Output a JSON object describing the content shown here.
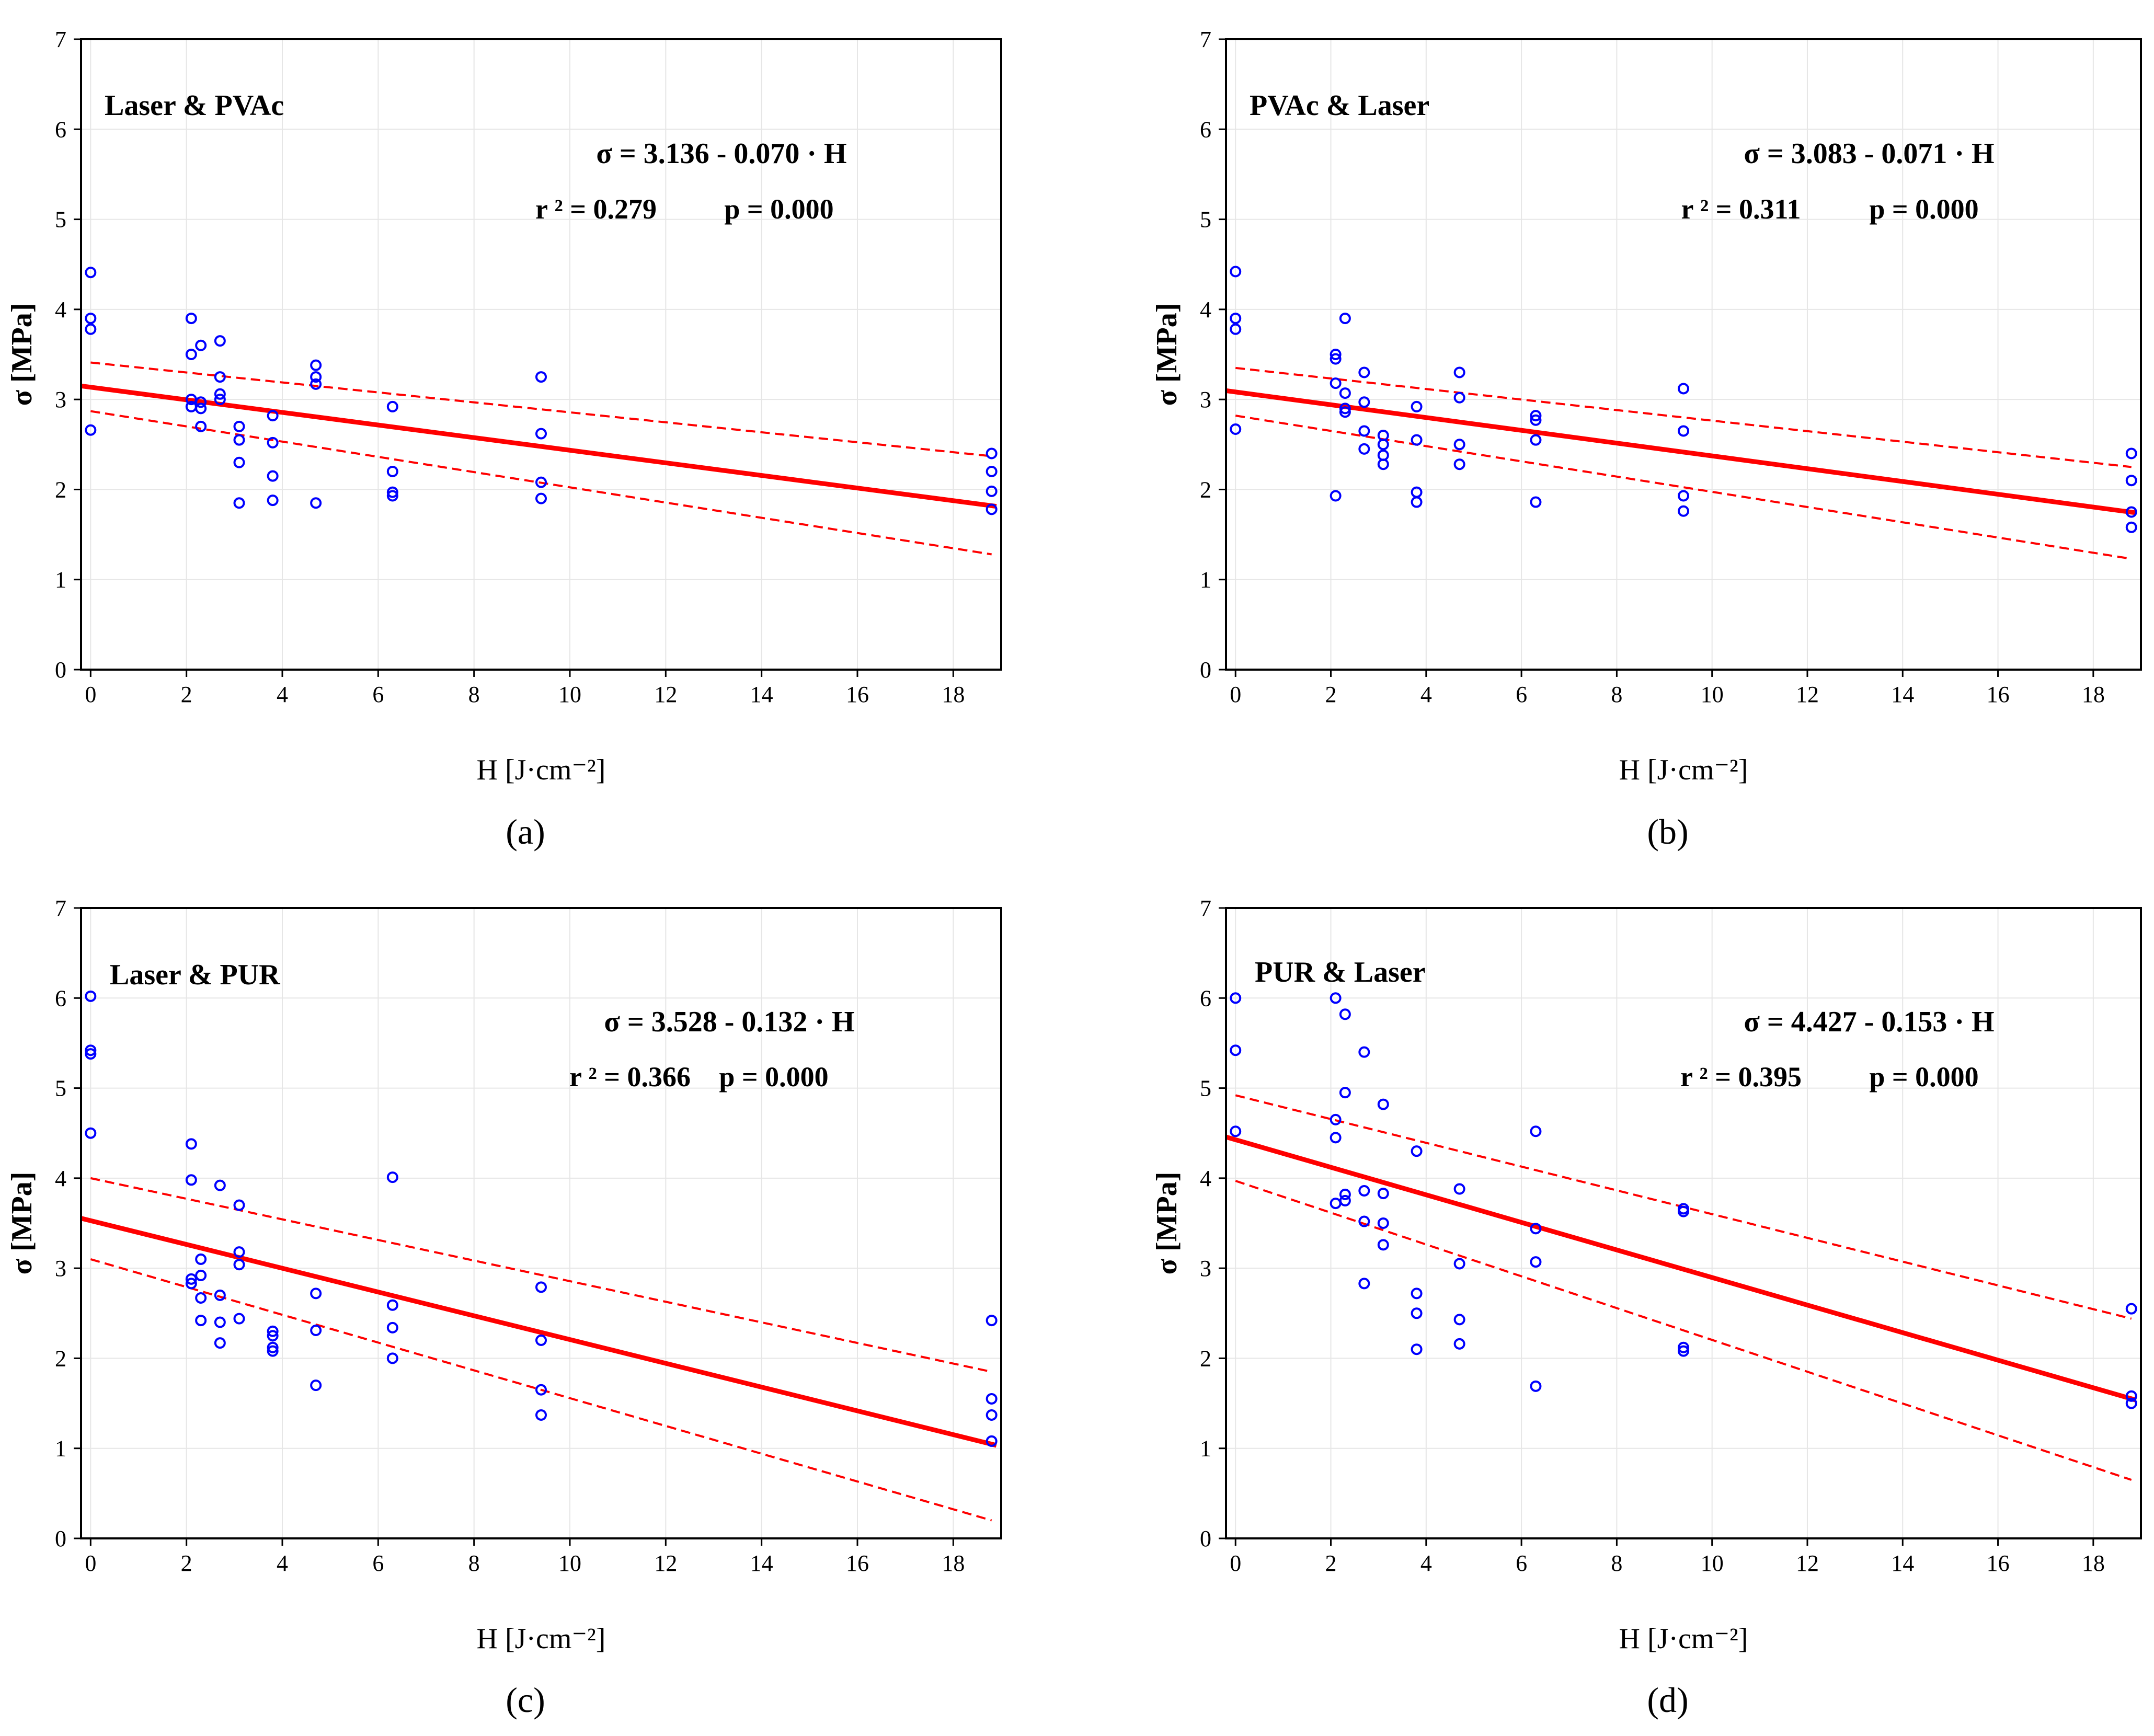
{
  "figure": {
    "colors": {
      "points": "#0000ff",
      "fit_line": "#ff0000",
      "conf_band": "#ff0000",
      "grid": "#e6e6e6",
      "axes": "#000000"
    }
  },
  "chart_data": [
    {
      "type": "scatter",
      "caption": "(a)",
      "title": "Laser & PVAc",
      "xlabel": "H [J·cm⁻²]",
      "ylabel": "σ [MPa]",
      "xlim": [
        -0.2,
        19
      ],
      "ylim": [
        0,
        7
      ],
      "xticks": [
        0,
        2,
        4,
        6,
        8,
        10,
        12,
        14,
        16,
        18
      ],
      "yticks": [
        0,
        1,
        2,
        3,
        4,
        5,
        6,
        7
      ],
      "grid": true,
      "equation": "σ = 3.136 - 0.070 · H",
      "r2_text": "r ² = 0.279",
      "p_text": "p = 0.000",
      "fit": {
        "intercept": 3.136,
        "slope": -0.07
      },
      "conf_band": {
        "upper": [
          [
            0,
            3.41
          ],
          [
            18.8,
            2.37
          ]
        ],
        "lower": [
          [
            0,
            2.87
          ],
          [
            18.8,
            1.28
          ]
        ]
      },
      "points": [
        [
          0,
          4.41
        ],
        [
          0,
          3.9
        ],
        [
          0,
          3.78
        ],
        [
          0,
          2.66
        ],
        [
          2.1,
          3.9
        ],
        [
          2.1,
          3.5
        ],
        [
          2.1,
          3.0
        ],
        [
          2.1,
          2.92
        ],
        [
          2.3,
          3.6
        ],
        [
          2.3,
          2.97
        ],
        [
          2.3,
          2.9
        ],
        [
          2.3,
          2.7
        ],
        [
          2.7,
          3.65
        ],
        [
          2.7,
          3.25
        ],
        [
          2.7,
          3.06
        ],
        [
          2.7,
          3.0
        ],
        [
          3.1,
          2.7
        ],
        [
          3.1,
          2.55
        ],
        [
          3.1,
          2.3
        ],
        [
          3.1,
          1.85
        ],
        [
          3.8,
          2.82
        ],
        [
          3.8,
          2.52
        ],
        [
          3.8,
          2.15
        ],
        [
          3.8,
          1.88
        ],
        [
          4.7,
          3.38
        ],
        [
          4.7,
          3.25
        ],
        [
          4.7,
          3.17
        ],
        [
          4.7,
          1.85
        ],
        [
          6.3,
          2.92
        ],
        [
          6.3,
          2.2
        ],
        [
          6.3,
          1.97
        ],
        [
          6.3,
          1.93
        ],
        [
          9.4,
          3.25
        ],
        [
          9.4,
          2.62
        ],
        [
          9.4,
          2.08
        ],
        [
          9.4,
          1.9
        ],
        [
          18.8,
          2.4
        ],
        [
          18.8,
          2.2
        ],
        [
          18.8,
          1.98
        ],
        [
          18.8,
          1.78
        ]
      ]
    },
    {
      "type": "scatter",
      "caption": "(b)",
      "title": "PVAc & Laser",
      "xlabel": "H [J·cm⁻²]",
      "ylabel": "σ [MPa]",
      "xlim": [
        -0.2,
        19
      ],
      "ylim": [
        0,
        7
      ],
      "xticks": [
        0,
        2,
        4,
        6,
        8,
        10,
        12,
        14,
        16,
        18
      ],
      "yticks": [
        0,
        1,
        2,
        3,
        4,
        5,
        6,
        7
      ],
      "grid": true,
      "equation": "σ = 3.083 - 0.071 · H",
      "r2_text": "r ² = 0.311",
      "p_text": "p = 0.000",
      "fit": {
        "intercept": 3.083,
        "slope": -0.071
      },
      "conf_band": {
        "upper": [
          [
            0,
            3.35
          ],
          [
            18.8,
            2.25
          ]
        ],
        "lower": [
          [
            0,
            2.82
          ],
          [
            18.8,
            1.23
          ]
        ]
      },
      "points": [
        [
          0,
          4.42
        ],
        [
          0,
          3.9
        ],
        [
          0,
          3.78
        ],
        [
          0,
          2.67
        ],
        [
          2.1,
          3.5
        ],
        [
          2.1,
          3.45
        ],
        [
          2.1,
          3.18
        ],
        [
          2.1,
          1.93
        ],
        [
          2.3,
          3.9
        ],
        [
          2.3,
          3.07
        ],
        [
          2.3,
          2.9
        ],
        [
          2.3,
          2.86
        ],
        [
          2.7,
          3.3
        ],
        [
          2.7,
          2.97
        ],
        [
          2.7,
          2.65
        ],
        [
          2.7,
          2.45
        ],
        [
          3.1,
          2.6
        ],
        [
          3.1,
          2.5
        ],
        [
          3.1,
          2.38
        ],
        [
          3.1,
          2.28
        ],
        [
          3.8,
          2.92
        ],
        [
          3.8,
          2.55
        ],
        [
          3.8,
          1.97
        ],
        [
          3.8,
          1.86
        ],
        [
          4.7,
          3.3
        ],
        [
          4.7,
          3.02
        ],
        [
          4.7,
          2.5
        ],
        [
          4.7,
          2.28
        ],
        [
          6.3,
          2.82
        ],
        [
          6.3,
          2.77
        ],
        [
          6.3,
          2.55
        ],
        [
          6.3,
          1.86
        ],
        [
          9.4,
          3.12
        ],
        [
          9.4,
          2.65
        ],
        [
          9.4,
          1.93
        ],
        [
          9.4,
          1.76
        ],
        [
          18.8,
          2.4
        ],
        [
          18.8,
          2.1
        ],
        [
          18.8,
          1.75
        ],
        [
          18.8,
          1.58
        ]
      ]
    },
    {
      "type": "scatter",
      "caption": "(c)",
      "title": "Laser & PUR",
      "xlabel": "H [J·cm⁻²]",
      "ylabel": "σ [MPa]",
      "xlim": [
        -0.2,
        19
      ],
      "ylim": [
        0,
        7
      ],
      "xticks": [
        0,
        2,
        4,
        6,
        8,
        10,
        12,
        14,
        16,
        18
      ],
      "yticks": [
        0,
        1,
        2,
        3,
        4,
        5,
        6,
        7
      ],
      "grid": true,
      "equation": "σ = 3.528 - 0.132 · H",
      "r2_text": "r ² = 0.366",
      "p_text": "p = 0.000",
      "fit": {
        "intercept": 3.528,
        "slope": -0.132
      },
      "conf_band": {
        "upper": [
          [
            0,
            4.0
          ],
          [
            18.8,
            1.85
          ]
        ],
        "lower": [
          [
            0,
            3.1
          ],
          [
            18.8,
            0.2
          ]
        ]
      },
      "points": [
        [
          0,
          6.02
        ],
        [
          0,
          5.42
        ],
        [
          0,
          5.38
        ],
        [
          0,
          4.5
        ],
        [
          2.1,
          4.38
        ],
        [
          2.1,
          3.98
        ],
        [
          2.1,
          2.88
        ],
        [
          2.1,
          2.83
        ],
        [
          2.3,
          3.1
        ],
        [
          2.3,
          2.92
        ],
        [
          2.3,
          2.67
        ],
        [
          2.3,
          2.42
        ],
        [
          2.7,
          3.92
        ],
        [
          2.7,
          2.7
        ],
        [
          2.7,
          2.4
        ],
        [
          2.7,
          2.17
        ],
        [
          3.1,
          3.7
        ],
        [
          3.1,
          3.18
        ],
        [
          3.1,
          3.04
        ],
        [
          3.1,
          2.44
        ],
        [
          3.8,
          2.3
        ],
        [
          3.8,
          2.25
        ],
        [
          3.8,
          2.12
        ],
        [
          3.8,
          2.08
        ],
        [
          4.7,
          2.72
        ],
        [
          4.7,
          2.31
        ],
        [
          4.7,
          1.7
        ],
        [
          6.3,
          4.01
        ],
        [
          6.3,
          2.59
        ],
        [
          6.3,
          2.34
        ],
        [
          6.3,
          2.0
        ],
        [
          9.4,
          2.79
        ],
        [
          9.4,
          2.2
        ],
        [
          9.4,
          1.65
        ],
        [
          9.4,
          1.37
        ],
        [
          18.8,
          2.42
        ],
        [
          18.8,
          1.55
        ],
        [
          18.8,
          1.37
        ],
        [
          18.8,
          1.08
        ]
      ]
    },
    {
      "type": "scatter",
      "caption": "(d)",
      "title": "PUR & Laser",
      "xlabel": "H [J·cm⁻²]",
      "ylabel": "σ [MPa]",
      "xlim": [
        -0.2,
        19
      ],
      "ylim": [
        0,
        7
      ],
      "xticks": [
        0,
        2,
        4,
        6,
        8,
        10,
        12,
        14,
        16,
        18
      ],
      "yticks": [
        0,
        1,
        2,
        3,
        4,
        5,
        6,
        7
      ],
      "grid": true,
      "equation": "σ = 4.427 - 0.153 · H",
      "r2_text": "r ² = 0.395",
      "p_text": "p = 0.000",
      "fit": {
        "intercept": 4.427,
        "slope": -0.153
      },
      "conf_band": {
        "upper": [
          [
            0,
            4.92
          ],
          [
            18.8,
            2.44
          ]
        ],
        "lower": [
          [
            0,
            3.97
          ],
          [
            18.8,
            0.65
          ]
        ]
      },
      "points": [
        [
          0,
          6.0
        ],
        [
          0,
          5.42
        ],
        [
          0,
          4.52
        ],
        [
          2.1,
          6.0
        ],
        [
          2.1,
          4.65
        ],
        [
          2.1,
          4.45
        ],
        [
          2.1,
          3.72
        ],
        [
          2.3,
          5.82
        ],
        [
          2.3,
          4.95
        ],
        [
          2.3,
          3.82
        ],
        [
          2.3,
          3.75
        ],
        [
          2.7,
          5.4
        ],
        [
          2.7,
          3.86
        ],
        [
          2.7,
          3.52
        ],
        [
          2.7,
          2.83
        ],
        [
          3.1,
          4.82
        ],
        [
          3.1,
          3.83
        ],
        [
          3.1,
          3.5
        ],
        [
          3.1,
          3.26
        ],
        [
          3.8,
          4.3
        ],
        [
          3.8,
          2.72
        ],
        [
          3.8,
          2.5
        ],
        [
          3.8,
          2.1
        ],
        [
          4.7,
          3.88
        ],
        [
          4.7,
          3.05
        ],
        [
          4.7,
          2.43
        ],
        [
          4.7,
          2.16
        ],
        [
          6.3,
          4.52
        ],
        [
          6.3,
          3.44
        ],
        [
          6.3,
          3.07
        ],
        [
          6.3,
          1.69
        ],
        [
          9.4,
          3.66
        ],
        [
          9.4,
          3.63
        ],
        [
          9.4,
          2.12
        ],
        [
          9.4,
          2.08
        ],
        [
          18.8,
          2.55
        ],
        [
          18.8,
          1.58
        ],
        [
          18.8,
          1.5
        ]
      ]
    }
  ]
}
